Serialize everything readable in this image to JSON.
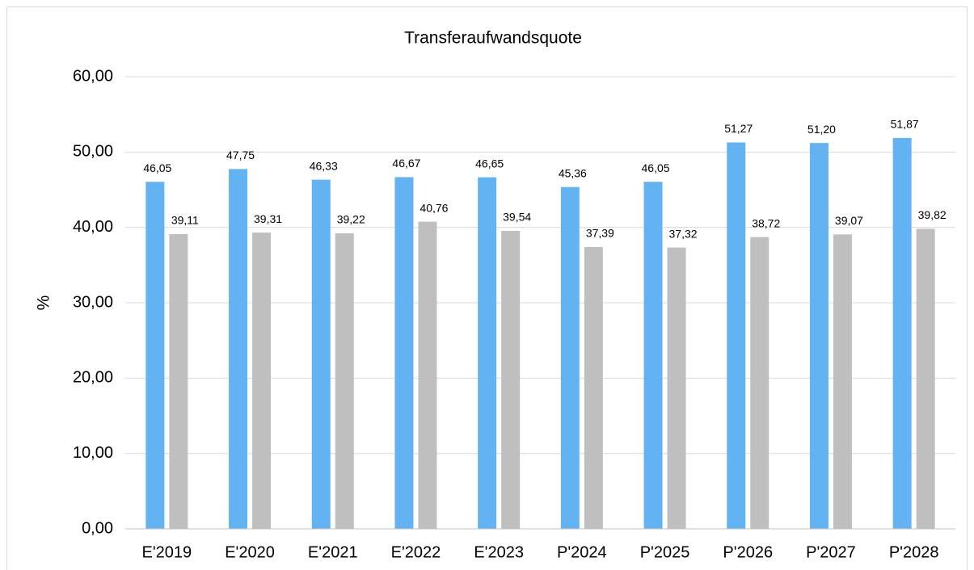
{
  "chart_data": {
    "type": "bar",
    "title": "Transferaufwandsquote",
    "y_label": "%",
    "categories": [
      "E'2019",
      "E'2020",
      "E'2021",
      "E'2022",
      "E'2023",
      "P'2024",
      "P'2025",
      "P'2026",
      "P'2027",
      "P'2028"
    ],
    "series": [
      {
        "color": "#63b3f3",
        "values": [
          46.05,
          47.75,
          46.33,
          46.67,
          46.65,
          45.36,
          46.05,
          51.27,
          51.2,
          51.87
        ],
        "value_labels": [
          "46,05",
          "47,75",
          "46,33",
          "46,67",
          "46,65",
          "45,36",
          "46,05",
          "51,27",
          "51,20",
          "51,87"
        ]
      },
      {
        "color": "#bfbfbf",
        "values": [
          39.11,
          39.31,
          39.22,
          40.76,
          39.54,
          37.39,
          37.32,
          38.72,
          39.07,
          39.82
        ],
        "value_labels": [
          "39,11",
          "39,31",
          "39,22",
          "40,76",
          "39,54",
          "37,39",
          "37,32",
          "38,72",
          "39,07",
          "39,82"
        ]
      }
    ],
    "ylim": [
      0,
      60
    ],
    "yticks": [
      {
        "value": 0,
        "label": "0,00"
      },
      {
        "value": 10,
        "label": "10,00"
      },
      {
        "value": 20,
        "label": "20,00"
      },
      {
        "value": 30,
        "label": "30,00"
      },
      {
        "value": 40,
        "label": "40,00"
      },
      {
        "value": 50,
        "label": "50,00"
      },
      {
        "value": 60,
        "label": "60,00"
      }
    ],
    "grid": true
  }
}
